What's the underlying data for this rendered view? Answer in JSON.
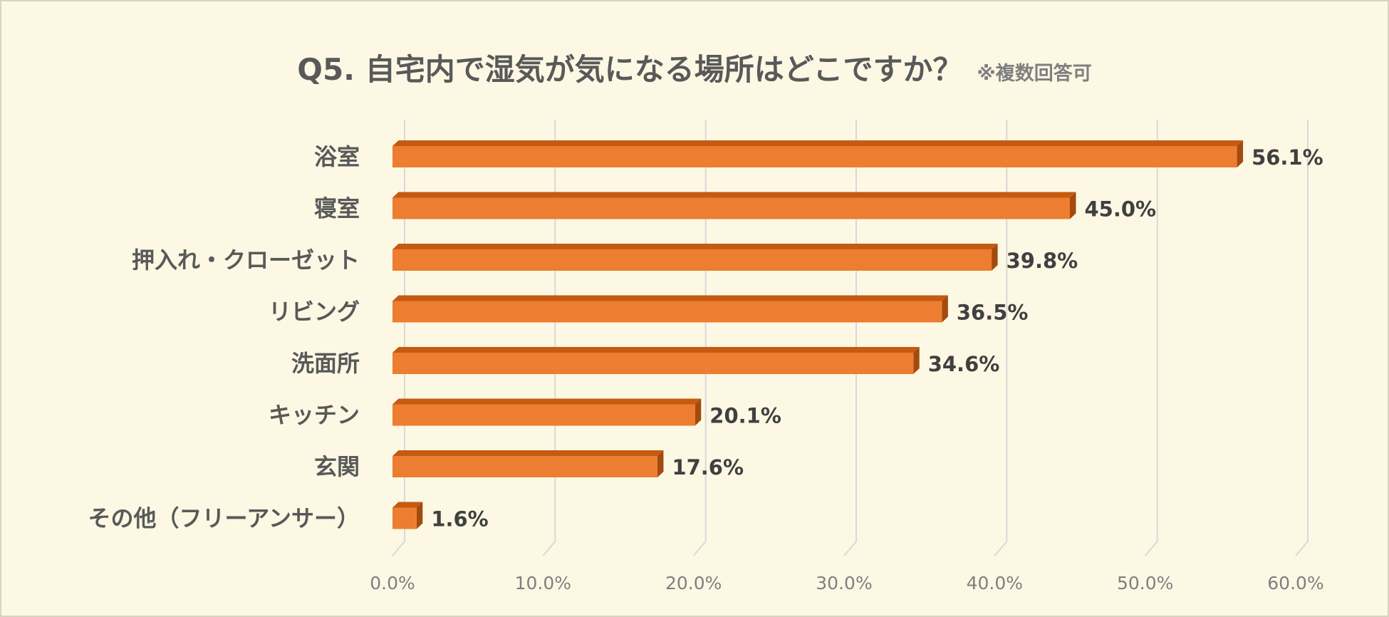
{
  "chart_data": {
    "type": "bar",
    "orientation": "horizontal",
    "title": "Q5. 自宅内で湿気が気になる場所はどこですか？",
    "subtitle": "※複数回答可",
    "categories": [
      "浴室",
      "寝室",
      "押入れ・クローゼット",
      "リビング",
      "洗面所",
      "キッチン",
      "玄関",
      "その他（フリーアンサー）"
    ],
    "values": [
      56.1,
      45.0,
      39.8,
      36.5,
      34.6,
      20.1,
      17.6,
      1.6
    ],
    "value_labels": [
      "56.1%",
      "45.0%",
      "39.8%",
      "36.5%",
      "34.6%",
      "20.1%",
      "17.6%",
      "1.6%"
    ],
    "xlim": [
      0,
      60
    ],
    "xticks": [
      0,
      10,
      20,
      30,
      40,
      50,
      60
    ],
    "xtick_labels": [
      "0.0%",
      "10.0%",
      "20.0%",
      "30.0%",
      "40.0%",
      "50.0%",
      "60.0%"
    ],
    "grid": true,
    "colors": {
      "bar_front": "#ed7d31",
      "bar_top": "#c55a11",
      "bar_side": "#a34a0e",
      "gridline": "#d9d9d9",
      "background": "#fdf8e4"
    }
  }
}
